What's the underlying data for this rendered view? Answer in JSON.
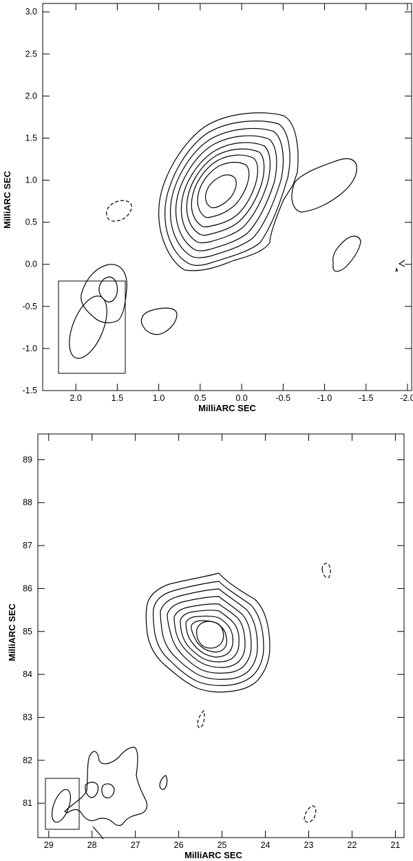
{
  "chart_data": [
    {
      "type": "contour",
      "xlabel": "MilliARC SEC",
      "ylabel": "MilliARC SEC",
      "xlim": [
        2.4,
        -2.05
      ],
      "ylim": [
        -1.5,
        3.1
      ],
      "x_ticks": [
        2.0,
        1.5,
        1.0,
        0.5,
        0.0,
        -0.5,
        -1.0,
        -1.5,
        -2.0
      ],
      "x_tick_labels": [
        "2.0",
        "1.5",
        "1.0",
        "0.5",
        "0.0",
        "-0.5",
        "-1.0",
        "-1.5",
        "-2.0"
      ],
      "y_ticks": [
        -1.5,
        -1.0,
        -0.5,
        0.0,
        0.5,
        1.0,
        1.5,
        2.0,
        2.5,
        3.0
      ],
      "y_tick_labels": [
        "-1.5",
        "-1.0",
        "-0.5",
        "0.0",
        "0.5",
        "1.0",
        "1.5",
        "2.0",
        "2.5",
        "3.0"
      ],
      "source_peak": [
        0.3,
        0.8
      ],
      "beam_box": {
        "x": [
          2.15,
          1.38
        ],
        "y": [
          -1.3,
          -0.2
        ]
      },
      "beam_ellipse": {
        "cx": 1.75,
        "cy": -0.76,
        "major": 0.75,
        "minor": 0.37
      }
    },
    {
      "type": "contour",
      "xlabel": "MilliARC SEC",
      "ylabel": "MilliARC SEC",
      "xlim": [
        29.25,
        20.8
      ],
      "ylim": [
        80.2,
        89.6
      ],
      "x_ticks": [
        29,
        28,
        27,
        26,
        25,
        24,
        23,
        22,
        21
      ],
      "x_tick_labels": [
        "29",
        "28",
        "27",
        "26",
        "25",
        "24",
        "23",
        "22",
        "21"
      ],
      "y_ticks": [
        81,
        82,
        83,
        84,
        85,
        86,
        87,
        88,
        89
      ],
      "y_tick_labels": [
        "81",
        "82",
        "83",
        "84",
        "85",
        "86",
        "87",
        "88",
        "89"
      ],
      "source_peak": [
        25.4,
        85.0
      ],
      "beam_box": {
        "x": [
          29.15,
          28.35
        ],
        "y": [
          80.4,
          81.6
        ]
      },
      "beam_ellipse": {
        "cx": 28.75,
        "cy": 80.95,
        "major": 0.75,
        "minor": 0.32
      }
    }
  ]
}
